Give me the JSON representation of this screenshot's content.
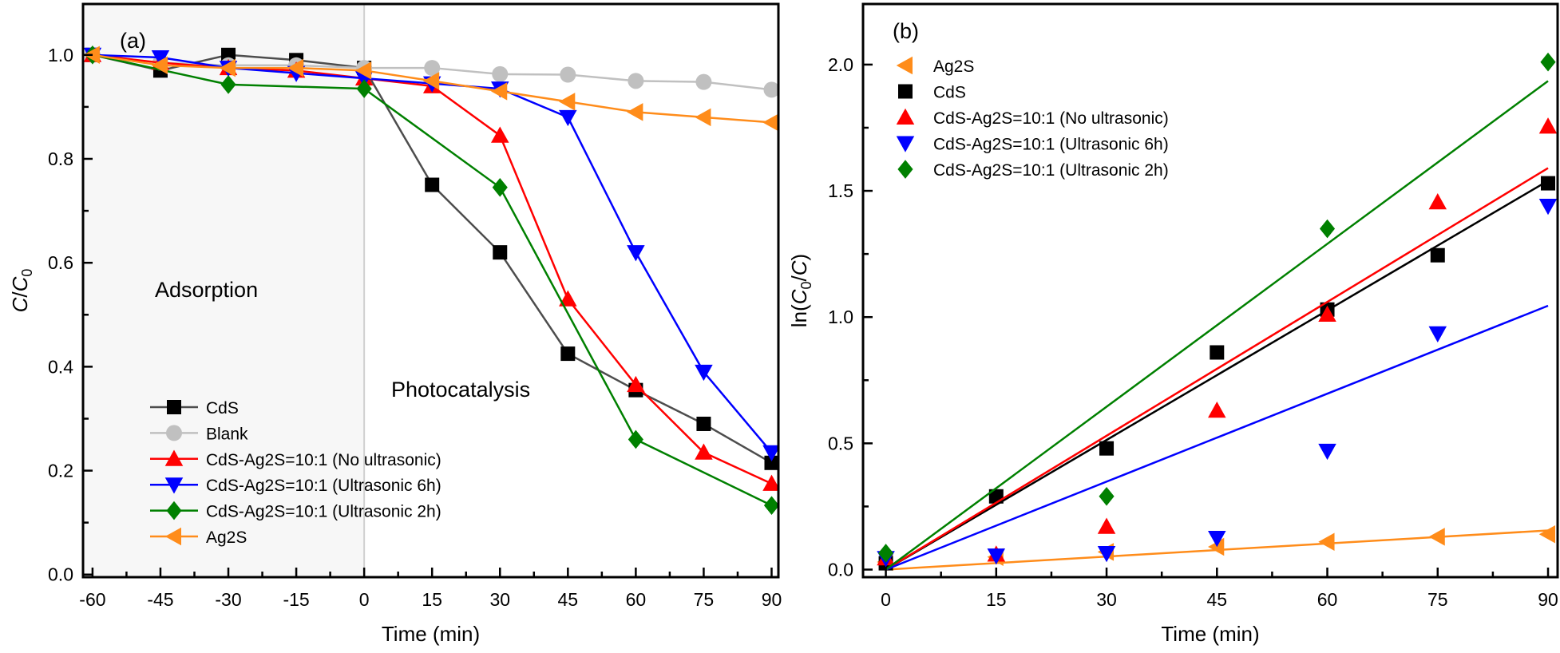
{
  "chart_data": [
    {
      "type": "line",
      "panel_label": "(a)",
      "xlabel": "Time (min)",
      "ylabel_parts": [
        [
          "C",
          "i"
        ],
        [
          "/",
          ""
        ],
        [
          "C",
          "i"
        ],
        [
          "0",
          "sub"
        ]
      ],
      "xlim": [
        -62.1,
        91.5
      ],
      "ylim": [
        -0.005,
        1.098
      ],
      "xticks": [
        -60,
        -45,
        -30,
        -15,
        0,
        15,
        30,
        45,
        60,
        75,
        90
      ],
      "yticks": [
        0.0,
        0.2,
        0.4,
        0.6,
        0.8,
        1.0
      ],
      "ytick_labels": [
        "0.0",
        "0.2",
        "0.4",
        "0.6",
        "0.8",
        "1.0"
      ],
      "grid": false,
      "shaded_region": {
        "x": [
          -62.1,
          0
        ],
        "color": "#f7f7f7",
        "label": "Adsorption"
      },
      "annotations": [
        "Adsorption",
        "Photocatalysis"
      ],
      "legend_position": "bottom-left",
      "series": [
        {
          "name": "CdS",
          "color": "#4d4d4d",
          "marker": "square",
          "marker_color": "#000000",
          "x": [
            -60,
            -45,
            -30,
            -15,
            0,
            15,
            30,
            45,
            60,
            75,
            90
          ],
          "y": [
            1.0,
            0.97,
            1.0,
            0.99,
            0.975,
            0.75,
            0.62,
            0.425,
            0.355,
            0.29,
            0.215
          ]
        },
        {
          "name": "Blank",
          "color": "#c0c0c0",
          "marker": "circle",
          "marker_color": "#c0c0c0",
          "x": [
            -60,
            -45,
            -30,
            -15,
            0,
            15,
            30,
            45,
            60,
            75,
            90
          ],
          "y": [
            1.0,
            0.985,
            0.98,
            0.98,
            0.975,
            0.975,
            0.963,
            0.962,
            0.95,
            0.948,
            0.933
          ]
        },
        {
          "name": "CdS-Ag2S=10:1 (No ultrasonic)",
          "color": "#ff0000",
          "marker": "triangle-up",
          "marker_color": "#ff0000",
          "x": [
            -60,
            -45,
            -30,
            -15,
            0,
            15,
            30,
            45,
            60,
            75,
            90
          ],
          "y": [
            1.0,
            0.985,
            0.975,
            0.97,
            0.955,
            0.94,
            0.845,
            0.53,
            0.365,
            0.235,
            0.175
          ]
        },
        {
          "name": "CdS-Ag2S=10:1 (Ultrasonic 6h)",
          "color": "#0000ff",
          "marker": "triangle-down",
          "marker_color": "#0000ff",
          "x": [
            -60,
            -45,
            -30,
            -15,
            0,
            15,
            30,
            45,
            60,
            75,
            90
          ],
          "y": [
            1.0,
            0.995,
            0.975,
            0.965,
            0.955,
            0.945,
            0.935,
            0.88,
            0.62,
            0.39,
            0.235
          ]
        },
        {
          "name": "CdS-Ag2S=10:1 (Ultrasonic 2h)",
          "color": "#008000",
          "marker": "diamond",
          "marker_color": "#008000",
          "x": [
            -60,
            -30,
            0,
            30,
            60,
            90
          ],
          "y": [
            1.0,
            0.943,
            0.935,
            0.745,
            0.26,
            0.133
          ]
        },
        {
          "name": "Ag2S",
          "color": "#ff8c1a",
          "marker": "triangle-left",
          "marker_color": "#ff8c1a",
          "x": [
            -60,
            -45,
            -30,
            -15,
            0,
            15,
            30,
            45,
            60,
            75,
            90
          ],
          "y": [
            1.0,
            0.98,
            0.975,
            0.975,
            0.97,
            0.95,
            0.93,
            0.91,
            0.89,
            0.88,
            0.87
          ]
        }
      ]
    },
    {
      "type": "scatter",
      "panel_label": "(b)",
      "xlabel": "Time (min)",
      "ylabel_parts": [
        [
          "ln(",
          ""
        ],
        [
          "C",
          "i"
        ],
        [
          "0",
          "sub"
        ],
        [
          "/",
          ""
        ],
        [
          "C",
          "i"
        ],
        [
          ")",
          ""
        ]
      ],
      "xlim": [
        -3.1,
        91.3
      ],
      "ylim": [
        -0.03,
        2.24
      ],
      "xticks": [
        0,
        15,
        30,
        45,
        60,
        75,
        90
      ],
      "yticks": [
        0.0,
        0.5,
        1.0,
        1.5,
        2.0
      ],
      "ytick_labels": [
        "0.0",
        "0.5",
        "1.0",
        "1.5",
        "2.0"
      ],
      "grid": false,
      "legend_position": "top-left",
      "series": [
        {
          "name": "Ag2S",
          "color": "#ff8c1a",
          "marker": "triangle-left",
          "x": [
            0,
            15,
            30,
            45,
            60,
            75,
            90
          ],
          "y": [
            0.03,
            0.05,
            0.07,
            0.09,
            0.11,
            0.13,
            0.14
          ],
          "fit": {
            "x": [
              0,
              90
            ],
            "y": [
              0.0,
              0.155
            ]
          }
        },
        {
          "name": "CdS",
          "color": "#000000",
          "marker": "square",
          "x": [
            0,
            15,
            30,
            45,
            60,
            75,
            90
          ],
          "y": [
            0.025,
            0.29,
            0.48,
            0.86,
            1.03,
            1.245,
            1.53
          ],
          "fit": {
            "x": [
              0,
              90
            ],
            "y": [
              0.0,
              1.54
            ]
          }
        },
        {
          "name": "CdS-Ag2S=10:1 (No ultrasonic)",
          "color": "#ff0000",
          "marker": "triangle-up",
          "x": [
            0,
            15,
            30,
            45,
            60,
            75,
            90
          ],
          "y": [
            0.045,
            0.06,
            0.17,
            0.63,
            1.01,
            1.455,
            1.755
          ],
          "fit": {
            "x": [
              0,
              90
            ],
            "y": [
              0.0,
              1.59
            ]
          }
        },
        {
          "name": "CdS-Ag2S=10:1 (Ultrasonic 6h)",
          "color": "#0000ff",
          "marker": "triangle-down",
          "x": [
            0,
            15,
            30,
            45,
            60,
            75,
            90
          ],
          "y": [
            0.045,
            0.055,
            0.065,
            0.125,
            0.47,
            0.935,
            1.44
          ],
          "fit": {
            "x": [
              0,
              90
            ],
            "y": [
              0.0,
              1.045
            ]
          }
        },
        {
          "name": "CdS-Ag2S=10:1 (Ultrasonic 2h)",
          "color": "#008000",
          "marker": "diamond",
          "x": [
            0,
            30,
            60,
            90
          ],
          "y": [
            0.065,
            0.29,
            1.35,
            2.01
          ],
          "fit": {
            "x": [
              0,
              90
            ],
            "y": [
              0.0,
              1.935
            ]
          }
        }
      ]
    }
  ]
}
